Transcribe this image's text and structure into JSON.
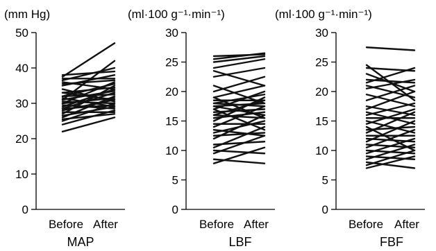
{
  "chart_data": [
    {
      "type": "line",
      "title": "MAP",
      "ylabel": "(mm Hg)",
      "ylim": [
        0,
        50
      ],
      "yticks": [
        0,
        10,
        20,
        30,
        40,
        50
      ],
      "categories": [
        "Before",
        "After"
      ],
      "series": [
        {
          "values": [
            22.0,
            26.0
          ]
        },
        {
          "values": [
            24.0,
            28.0
          ]
        },
        {
          "values": [
            25.0,
            30.0
          ]
        },
        {
          "values": [
            25.5,
            27.0
          ]
        },
        {
          "values": [
            26.0,
            32.0
          ]
        },
        {
          "values": [
            26.5,
            29.0
          ]
        },
        {
          "values": [
            27.0,
            35.0
          ]
        },
        {
          "values": [
            27.5,
            27.5
          ]
        },
        {
          "values": [
            28.0,
            31.0
          ]
        },
        {
          "values": [
            28.5,
            33.0
          ]
        },
        {
          "values": [
            28.5,
            29.5
          ]
        },
        {
          "values": [
            29.0,
            34.0
          ]
        },
        {
          "values": [
            29.5,
            28.5
          ]
        },
        {
          "values": [
            30.0,
            36.0
          ]
        },
        {
          "values": [
            30.0,
            31.5
          ]
        },
        {
          "values": [
            30.5,
            30.0
          ]
        },
        {
          "values": [
            31.0,
            33.5
          ]
        },
        {
          "values": [
            31.0,
            42.0
          ]
        },
        {
          "values": [
            31.5,
            29.0
          ]
        },
        {
          "values": [
            32.0,
            32.5
          ]
        },
        {
          "values": [
            32.0,
            35.5
          ]
        },
        {
          "values": [
            33.0,
            31.0
          ]
        },
        {
          "values": [
            33.0,
            34.5
          ]
        },
        {
          "values": [
            34.0,
            30.5
          ]
        },
        {
          "values": [
            35.0,
            38.0
          ]
        },
        {
          "values": [
            35.5,
            36.5
          ]
        },
        {
          "values": [
            36.0,
            34.0
          ]
        },
        {
          "values": [
            36.5,
            40.0
          ]
        },
        {
          "values": [
            37.0,
            37.0
          ]
        },
        {
          "values": [
            37.5,
            47.0
          ]
        },
        {
          "values": [
            38.0,
            39.0
          ]
        }
      ]
    },
    {
      "type": "line",
      "title": "LBF",
      "ylabel": "(ml·100 g⁻¹·min⁻¹)",
      "ylim": [
        0,
        30
      ],
      "yticks": [
        0,
        5,
        10,
        15,
        20,
        25,
        30
      ],
      "categories": [
        "Before",
        "After"
      ],
      "series": [
        {
          "values": [
            7.8,
            10.5
          ]
        },
        {
          "values": [
            8.5,
            7.8
          ]
        },
        {
          "values": [
            9.5,
            12.5
          ]
        },
        {
          "values": [
            10.0,
            9.5
          ]
        },
        {
          "values": [
            10.5,
            14.0
          ]
        },
        {
          "values": [
            11.0,
            11.5
          ]
        },
        {
          "values": [
            12.0,
            16.0
          ]
        },
        {
          "values": [
            12.5,
            13.0
          ]
        },
        {
          "values": [
            13.0,
            15.0
          ]
        },
        {
          "values": [
            13.5,
            12.5
          ]
        },
        {
          "values": [
            14.0,
            17.5
          ]
        },
        {
          "values": [
            14.5,
            14.5
          ]
        },
        {
          "values": [
            15.0,
            19.0
          ]
        },
        {
          "values": [
            15.5,
            16.5
          ]
        },
        {
          "values": [
            16.0,
            15.5
          ]
        },
        {
          "values": [
            16.0,
            18.5
          ]
        },
        {
          "values": [
            16.5,
            17.0
          ]
        },
        {
          "values": [
            17.0,
            20.0
          ]
        },
        {
          "values": [
            17.0,
            13.5
          ]
        },
        {
          "values": [
            17.5,
            18.0
          ]
        },
        {
          "values": [
            17.5,
            16.0
          ]
        },
        {
          "values": [
            18.0,
            19.5
          ]
        },
        {
          "values": [
            18.0,
            17.5
          ]
        },
        {
          "values": [
            18.5,
            18.5
          ]
        },
        {
          "values": [
            19.0,
            21.0
          ]
        },
        {
          "values": [
            19.0,
            15.5
          ]
        },
        {
          "values": [
            20.0,
            22.5
          ]
        },
        {
          "values": [
            21.0,
            18.0
          ]
        },
        {
          "values": [
            22.5,
            24.0
          ]
        },
        {
          "values": [
            23.5,
            21.0
          ]
        },
        {
          "values": [
            24.0,
            25.5
          ]
        },
        {
          "values": [
            25.0,
            26.0
          ]
        },
        {
          "values": [
            25.5,
            26.5
          ]
        },
        {
          "values": [
            26.0,
            26.3
          ]
        }
      ]
    },
    {
      "type": "line",
      "title": "FBF",
      "ylabel": "(ml·100 g⁻¹·min⁻¹)",
      "ylim": [
        0,
        30
      ],
      "yticks": [
        0,
        5,
        10,
        15,
        20,
        25,
        30
      ],
      "categories": [
        "Before",
        "After"
      ],
      "series": [
        {
          "values": [
            7.0,
            9.0
          ]
        },
        {
          "values": [
            7.5,
            10.0
          ]
        },
        {
          "values": [
            8.0,
            7.0
          ]
        },
        {
          "values": [
            8.5,
            11.0
          ]
        },
        {
          "values": [
            9.0,
            8.5
          ]
        },
        {
          "values": [
            9.5,
            12.0
          ]
        },
        {
          "values": [
            10.0,
            9.5
          ]
        },
        {
          "values": [
            10.5,
            13.5
          ]
        },
        {
          "values": [
            11.0,
            10.5
          ]
        },
        {
          "values": [
            11.5,
            15.0
          ]
        },
        {
          "values": [
            12.0,
            11.5
          ]
        },
        {
          "values": [
            12.5,
            12.5
          ]
        },
        {
          "values": [
            13.0,
            16.5
          ]
        },
        {
          "values": [
            13.5,
            14.0
          ]
        },
        {
          "values": [
            14.0,
            10.0
          ]
        },
        {
          "values": [
            14.5,
            17.0
          ]
        },
        {
          "values": [
            15.0,
            13.0
          ]
        },
        {
          "values": [
            15.5,
            15.5
          ]
        },
        {
          "values": [
            16.0,
            18.0
          ]
        },
        {
          "values": [
            16.5,
            14.5
          ]
        },
        {
          "values": [
            17.0,
            20.0
          ]
        },
        {
          "values": [
            17.5,
            16.0
          ]
        },
        {
          "values": [
            18.5,
            21.0
          ]
        },
        {
          "values": [
            19.5,
            17.5
          ]
        },
        {
          "values": [
            20.5,
            22.0
          ]
        },
        {
          "values": [
            21.0,
            19.0
          ]
        },
        {
          "values": [
            21.5,
            24.0
          ]
        },
        {
          "values": [
            22.0,
            21.5
          ]
        },
        {
          "values": [
            23.0,
            20.0
          ]
        },
        {
          "values": [
            24.0,
            23.5
          ]
        },
        {
          "values": [
            24.5,
            18.5
          ]
        },
        {
          "values": [
            27.5,
            27.0
          ]
        }
      ]
    }
  ]
}
